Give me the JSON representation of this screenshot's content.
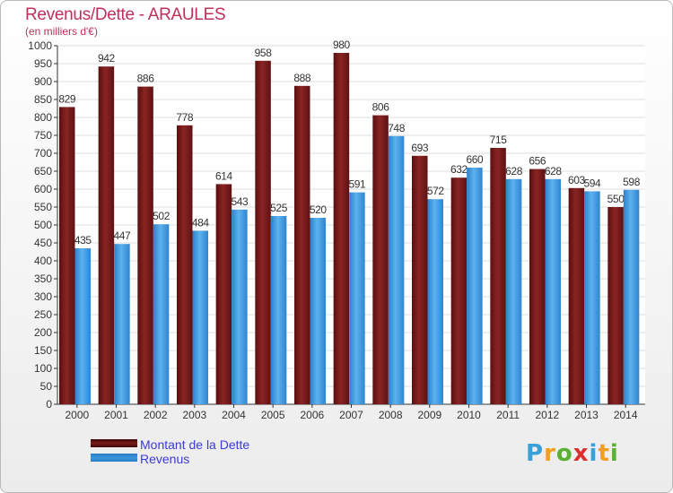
{
  "header": {
    "title": "Revenus/Dette - ARAULES",
    "subtitle": "(en milliers d'€)"
  },
  "chart_data": {
    "type": "bar",
    "categories": [
      "2000",
      "2001",
      "2002",
      "2003",
      "2004",
      "2005",
      "2006",
      "2007",
      "2008",
      "2009",
      "2010",
      "2011",
      "2012",
      "2013",
      "2014"
    ],
    "series": [
      {
        "name": "Montant de la Dette",
        "color": "#7a1b1b",
        "values": [
          829,
          942,
          886,
          778,
          614,
          958,
          888,
          980,
          806,
          693,
          632,
          715,
          656,
          603,
          550
        ]
      },
      {
        "name": "Revenus",
        "color": "#3a97dd",
        "values": [
          435,
          447,
          502,
          484,
          543,
          525,
          520,
          591,
          748,
          572,
          660,
          628,
          628,
          594,
          598
        ]
      }
    ],
    "ylim": [
      0,
      1000
    ],
    "ytick_step": 50,
    "grid": true,
    "legend_position": "bottom-left"
  },
  "logo": {
    "letters": [
      "P",
      "r",
      "o",
      "x",
      "i",
      "t",
      "i"
    ],
    "colors": [
      "#3aa0d8",
      "#f0a020",
      "#5ab030",
      "#d83030",
      "#3aa0d8",
      "#f0a020",
      "#5ab030"
    ]
  }
}
